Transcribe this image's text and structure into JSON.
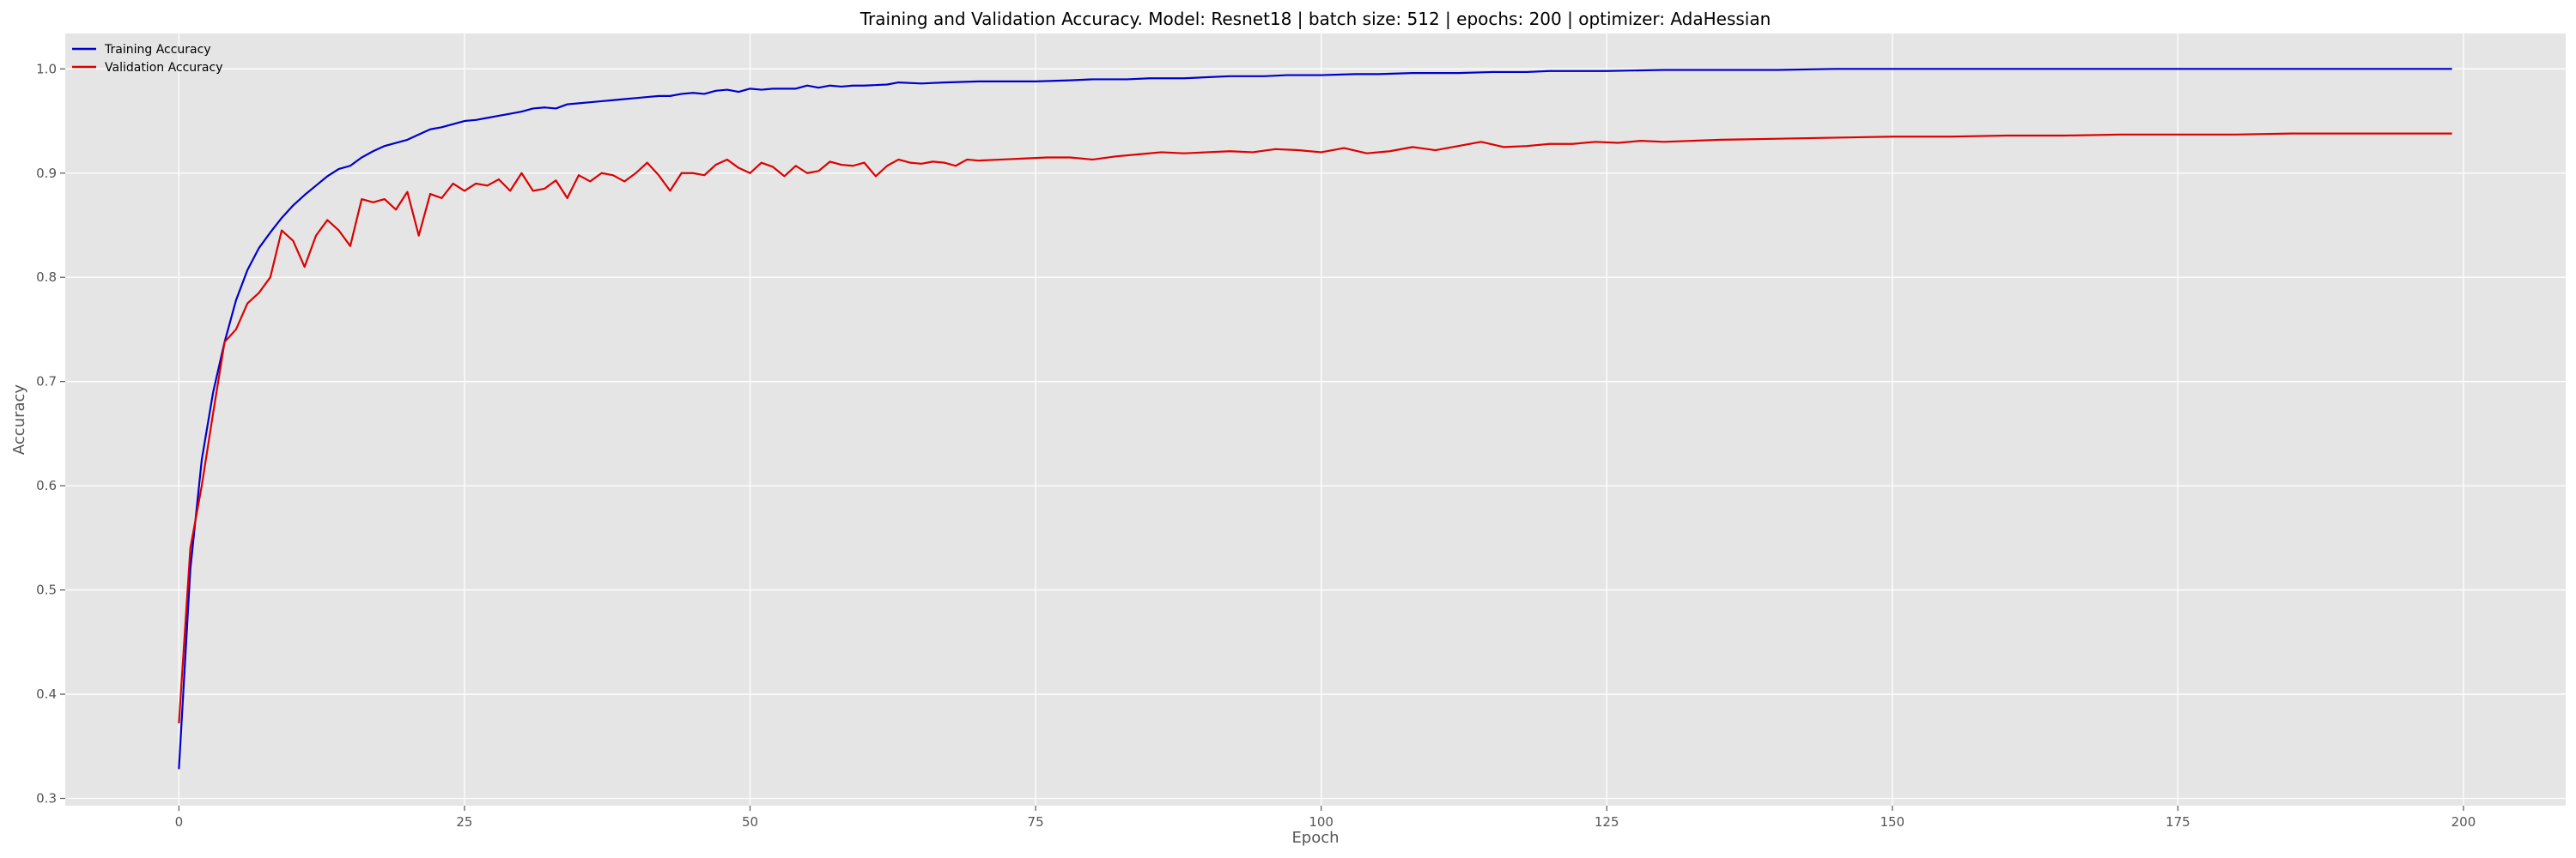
{
  "chart_data": {
    "type": "line",
    "title": "Training and Validation Accuracy. Model: Resnet18 | batch size: 512 | epochs: 200 | optimizer: AdaHessian",
    "xlabel": "Epoch",
    "ylabel": "Accuracy",
    "xlim": [
      -9.95,
      208.95
    ],
    "ylim": [
      0.293,
      1.034
    ],
    "xticks": [
      0,
      25,
      50,
      75,
      100,
      125,
      150,
      175,
      200
    ],
    "yticks": [
      0.3,
      0.4,
      0.5,
      0.6,
      0.7,
      0.8,
      0.9,
      1.0
    ],
    "xtick_labels": [
      "0",
      "25",
      "50",
      "75",
      "100",
      "125",
      "150",
      "175",
      "200"
    ],
    "ytick_labels": [
      "0.3",
      "0.4",
      "0.5",
      "0.6",
      "0.7",
      "0.8",
      "0.9",
      "1.0"
    ],
    "grid": true,
    "legend_position": "top-left",
    "background": "#e5e5e5",
    "series": [
      {
        "name": "Training Accuracy",
        "color": "#0000cc",
        "x": [
          0,
          1,
          2,
          3,
          4,
          5,
          6,
          7,
          8,
          9,
          10,
          11,
          12,
          13,
          14,
          15,
          16,
          17,
          18,
          19,
          20,
          21,
          22,
          23,
          24,
          25,
          26,
          27,
          28,
          29,
          30,
          31,
          32,
          33,
          34,
          35,
          36,
          37,
          38,
          39,
          40,
          41,
          42,
          43,
          44,
          45,
          46,
          47,
          48,
          49,
          50,
          51,
          52,
          53,
          54,
          55,
          56,
          57,
          58,
          59,
          60,
          62,
          63,
          65,
          67,
          70,
          72,
          75,
          78,
          80,
          83,
          85,
          88,
          90,
          92,
          95,
          97,
          100,
          103,
          105,
          108,
          110,
          112,
          115,
          118,
          120,
          125,
          130,
          135,
          140,
          145,
          150,
          160,
          170,
          180,
          190,
          199
        ],
        "values": [
          0.328,
          0.52,
          0.625,
          0.69,
          0.738,
          0.778,
          0.807,
          0.828,
          0.843,
          0.857,
          0.869,
          0.879,
          0.888,
          0.897,
          0.904,
          0.907,
          0.915,
          0.921,
          0.926,
          0.929,
          0.932,
          0.937,
          0.942,
          0.944,
          0.947,
          0.95,
          0.951,
          0.953,
          0.955,
          0.957,
          0.959,
          0.962,
          0.963,
          0.962,
          0.966,
          0.967,
          0.968,
          0.969,
          0.97,
          0.971,
          0.972,
          0.973,
          0.974,
          0.974,
          0.976,
          0.977,
          0.976,
          0.979,
          0.98,
          0.978,
          0.981,
          0.98,
          0.981,
          0.981,
          0.981,
          0.984,
          0.982,
          0.984,
          0.983,
          0.984,
          0.984,
          0.985,
          0.987,
          0.986,
          0.987,
          0.988,
          0.988,
          0.988,
          0.989,
          0.99,
          0.99,
          0.991,
          0.991,
          0.992,
          0.993,
          0.993,
          0.994,
          0.994,
          0.995,
          0.995,
          0.996,
          0.996,
          0.996,
          0.997,
          0.997,
          0.998,
          0.998,
          0.999,
          0.999,
          0.999,
          1.0,
          1.0,
          1.0,
          1.0,
          1.0,
          1.0,
          1.0
        ]
      },
      {
        "name": "Validation Accuracy",
        "color": "#dd0000",
        "x": [
          0,
          1,
          2,
          3,
          4,
          5,
          6,
          7,
          8,
          9,
          10,
          11,
          12,
          13,
          14,
          15,
          16,
          17,
          18,
          19,
          20,
          21,
          22,
          23,
          24,
          25,
          26,
          27,
          28,
          29,
          30,
          31,
          32,
          33,
          34,
          35,
          36,
          37,
          38,
          39,
          40,
          41,
          42,
          43,
          44,
          45,
          46,
          47,
          48,
          49,
          50,
          51,
          52,
          53,
          54,
          55,
          56,
          57,
          58,
          59,
          60,
          61,
          62,
          63,
          64,
          65,
          66,
          67,
          68,
          69,
          70,
          72,
          74,
          76,
          78,
          80,
          82,
          84,
          86,
          88,
          90,
          92,
          94,
          96,
          98,
          100,
          102,
          104,
          106,
          108,
          110,
          112,
          114,
          116,
          118,
          120,
          122,
          124,
          126,
          128,
          130,
          135,
          140,
          145,
          150,
          155,
          160,
          165,
          170,
          175,
          180,
          185,
          190,
          195,
          199
        ],
        "values": [
          0.372,
          0.54,
          0.6,
          0.67,
          0.738,
          0.75,
          0.775,
          0.785,
          0.8,
          0.845,
          0.835,
          0.81,
          0.84,
          0.855,
          0.845,
          0.83,
          0.875,
          0.872,
          0.875,
          0.865,
          0.882,
          0.84,
          0.88,
          0.876,
          0.89,
          0.883,
          0.89,
          0.888,
          0.894,
          0.883,
          0.9,
          0.883,
          0.885,
          0.893,
          0.876,
          0.898,
          0.892,
          0.9,
          0.898,
          0.892,
          0.9,
          0.91,
          0.898,
          0.883,
          0.9,
          0.9,
          0.898,
          0.908,
          0.913,
          0.905,
          0.9,
          0.91,
          0.906,
          0.897,
          0.907,
          0.9,
          0.902,
          0.911,
          0.908,
          0.907,
          0.91,
          0.897,
          0.907,
          0.913,
          0.91,
          0.909,
          0.911,
          0.91,
          0.907,
          0.913,
          0.912,
          0.913,
          0.914,
          0.915,
          0.915,
          0.913,
          0.916,
          0.918,
          0.92,
          0.919,
          0.92,
          0.921,
          0.92,
          0.923,
          0.922,
          0.92,
          0.924,
          0.919,
          0.921,
          0.925,
          0.922,
          0.926,
          0.93,
          0.925,
          0.926,
          0.928,
          0.928,
          0.93,
          0.929,
          0.931,
          0.93,
          0.932,
          0.933,
          0.934,
          0.935,
          0.935,
          0.936,
          0.936,
          0.937,
          0.937,
          0.937,
          0.938,
          0.938,
          0.938,
          0.938
        ]
      }
    ]
  }
}
